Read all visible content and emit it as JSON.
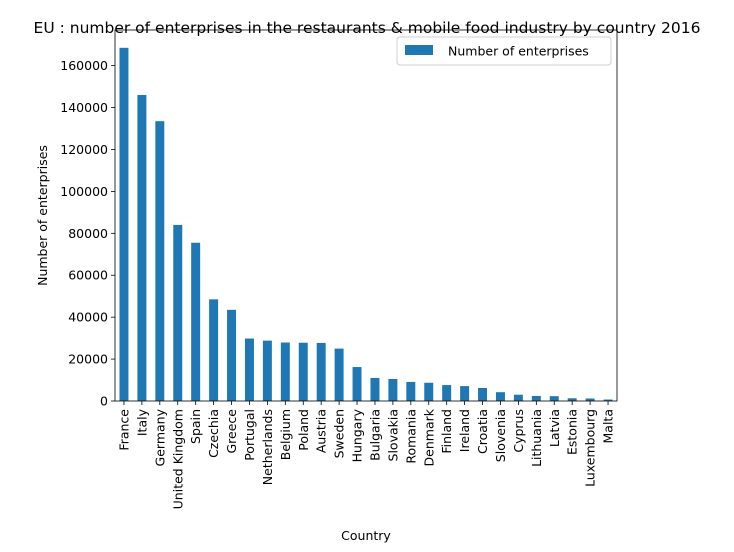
{
  "chart_data": {
    "type": "bar",
    "title": "EU : number of enterprises in the restaurants & mobile food industry by country 2016",
    "xlabel": "Country",
    "ylabel": "Number of enterprises",
    "ylim": [
      0,
      177000
    ],
    "yticks": [
      0,
      20000,
      40000,
      60000,
      80000,
      100000,
      120000,
      140000,
      160000
    ],
    "grid": false,
    "legend_position": "top-right",
    "bar_color": "#1f77b4",
    "categories": [
      "France",
      "Italy",
      "Germany",
      "United Kingdom",
      "Spain",
      "Czechia",
      "Greece",
      "Portugal",
      "Netherlands",
      "Belgium",
      "Poland",
      "Austria",
      "Sweden",
      "Hungary",
      "Bulgaria",
      "Slovakia",
      "Romania",
      "Denmark",
      "Finland",
      "Ireland",
      "Croatia",
      "Slovenia",
      "Cyprus",
      "Lithuania",
      "Latvia",
      "Estonia",
      "Luxembourg",
      "Malta"
    ],
    "series": [
      {
        "name": "Number of enterprises",
        "values": [
          168500,
          146000,
          133500,
          84000,
          75500,
          48500,
          43500,
          29800,
          28800,
          27900,
          27800,
          27700,
          25000,
          16200,
          11000,
          10500,
          9100,
          8700,
          7600,
          7100,
          6200,
          4200,
          3000,
          2400,
          2300,
          1300,
          1200,
          700
        ]
      }
    ]
  }
}
